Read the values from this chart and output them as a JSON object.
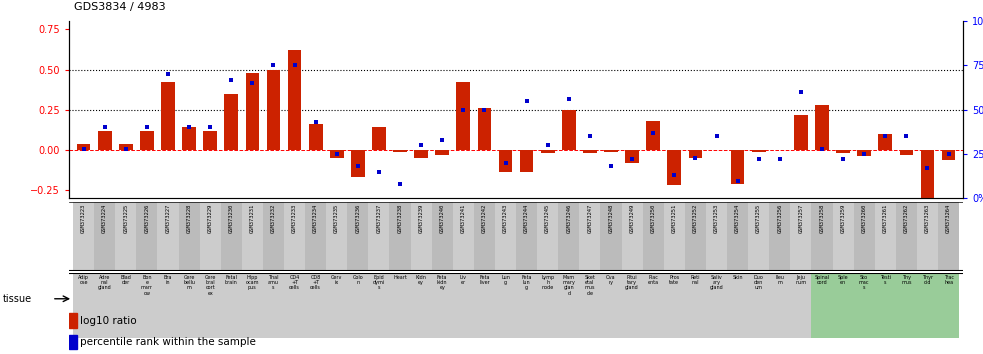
{
  "title": "GDS3834 / 4983",
  "gsm_ids": [
    "GSM373223",
    "GSM373224",
    "GSM373225",
    "GSM373226",
    "GSM373227",
    "GSM373228",
    "GSM373229",
    "GSM373230",
    "GSM373231",
    "GSM373232",
    "GSM373233",
    "GSM373234",
    "GSM373235",
    "GSM373236",
    "GSM373237",
    "GSM373238",
    "GSM373239",
    "GSM373240",
    "GSM373241",
    "GSM373242",
    "GSM373243",
    "GSM373244",
    "GSM373245",
    "GSM373246",
    "GSM373247",
    "GSM373248",
    "GSM373249",
    "GSM373250",
    "GSM373251",
    "GSM373252",
    "GSM373253",
    "GSM373254",
    "GSM373255",
    "GSM373256",
    "GSM373257",
    "GSM373258",
    "GSM373259",
    "GSM373260",
    "GSM373261",
    "GSM373262",
    "GSM373263",
    "GSM373264"
  ],
  "tissues_display": [
    "Adip\nose",
    "Adre\nnal\ngland",
    "Blad\nder",
    "Bon\ne\nmarr\now",
    "Bra\nin",
    "Cere\nbellu\nm",
    "Cere\nbral\ncort\nex",
    "Fetal\nbrain",
    "Hipp\nocam\npus",
    "Thal\namu\ns",
    "CD4\n+T\ncells",
    "CD8\n+T\ncells",
    "Cerv\nix",
    "Colo\nn",
    "Epid\ndymi\ns",
    "Heart",
    "Kidn\ney",
    "Feta\nkidn\ney",
    "Liv\ner",
    "Feta\nliver",
    "Lun\ng",
    "Feta\nlun\ng",
    "Lymp\nh\nnode",
    "Mam\nmary\nglan\nd",
    "Sket\netal\nmus\ncle",
    "Ova\nry",
    "Pitui\ntary\ngland",
    "Plac\nenta",
    "Pros\ntate",
    "Reti\nnal",
    "Saliv\nary\ngland",
    "Skin",
    "Duo\nden\num",
    "Ileu\nm",
    "Jeju\nnum",
    "Spinal\ncord",
    "Sple\nen",
    "Sto\nmac\ns",
    "Testi\ns",
    "Thy\nmus",
    "Thyr\noid",
    "Trac\nhea"
  ],
  "tissue_colors": [
    "#cccccc",
    "#cccccc",
    "#cccccc",
    "#cccccc",
    "#cccccc",
    "#cccccc",
    "#cccccc",
    "#cccccc",
    "#cccccc",
    "#cccccc",
    "#cccccc",
    "#cccccc",
    "#cccccc",
    "#cccccc",
    "#cccccc",
    "#cccccc",
    "#cccccc",
    "#cccccc",
    "#cccccc",
    "#cccccc",
    "#cccccc",
    "#cccccc",
    "#cccccc",
    "#cccccc",
    "#cccccc",
    "#cccccc",
    "#cccccc",
    "#cccccc",
    "#cccccc",
    "#cccccc",
    "#cccccc",
    "#cccccc",
    "#cccccc",
    "#cccccc",
    "#cccccc",
    "#99cc99",
    "#99cc99",
    "#99cc99",
    "#99cc99",
    "#99cc99",
    "#99cc99",
    "#99cc99"
  ],
  "log10_ratio": [
    0.04,
    0.12,
    0.04,
    0.12,
    0.42,
    0.14,
    0.12,
    0.35,
    0.48,
    0.5,
    0.62,
    0.16,
    -0.05,
    -0.17,
    0.14,
    -0.01,
    -0.05,
    -0.03,
    0.42,
    0.26,
    -0.14,
    -0.14,
    -0.02,
    0.25,
    -0.02,
    -0.01,
    -0.08,
    0.18,
    -0.22,
    -0.05,
    0.0,
    -0.21,
    -0.01,
    0.0,
    0.22,
    0.28,
    -0.02,
    -0.04,
    0.1,
    -0.03,
    -0.32,
    -0.06
  ],
  "percentile_rank": [
    28,
    40,
    28,
    40,
    70,
    40,
    40,
    67,
    65,
    75,
    75,
    43,
    25,
    18,
    15,
    8,
    30,
    33,
    50,
    50,
    20,
    55,
    30,
    56,
    35,
    18,
    22,
    37,
    13,
    23,
    35,
    10,
    22,
    22,
    60,
    28,
    22,
    25,
    35,
    35,
    17,
    25
  ],
  "bar_color": "#cc2200",
  "scatter_color": "#0000cc",
  "ylim_left": [
    -0.3,
    0.8
  ],
  "ylim_right": [
    0,
    100
  ],
  "yticks_left": [
    -0.25,
    0.0,
    0.25,
    0.5,
    0.75
  ],
  "yticks_right": [
    0,
    25,
    50,
    75,
    100
  ],
  "hline_dotted": [
    0.25,
    0.5
  ],
  "hline_dashed_red": 0.0,
  "legend_bar_label": "log10 ratio",
  "legend_scatter_label": "percentile rank within the sample",
  "gsm_bg_even": "#cccccc",
  "gsm_bg_odd": "#bbbbbb"
}
